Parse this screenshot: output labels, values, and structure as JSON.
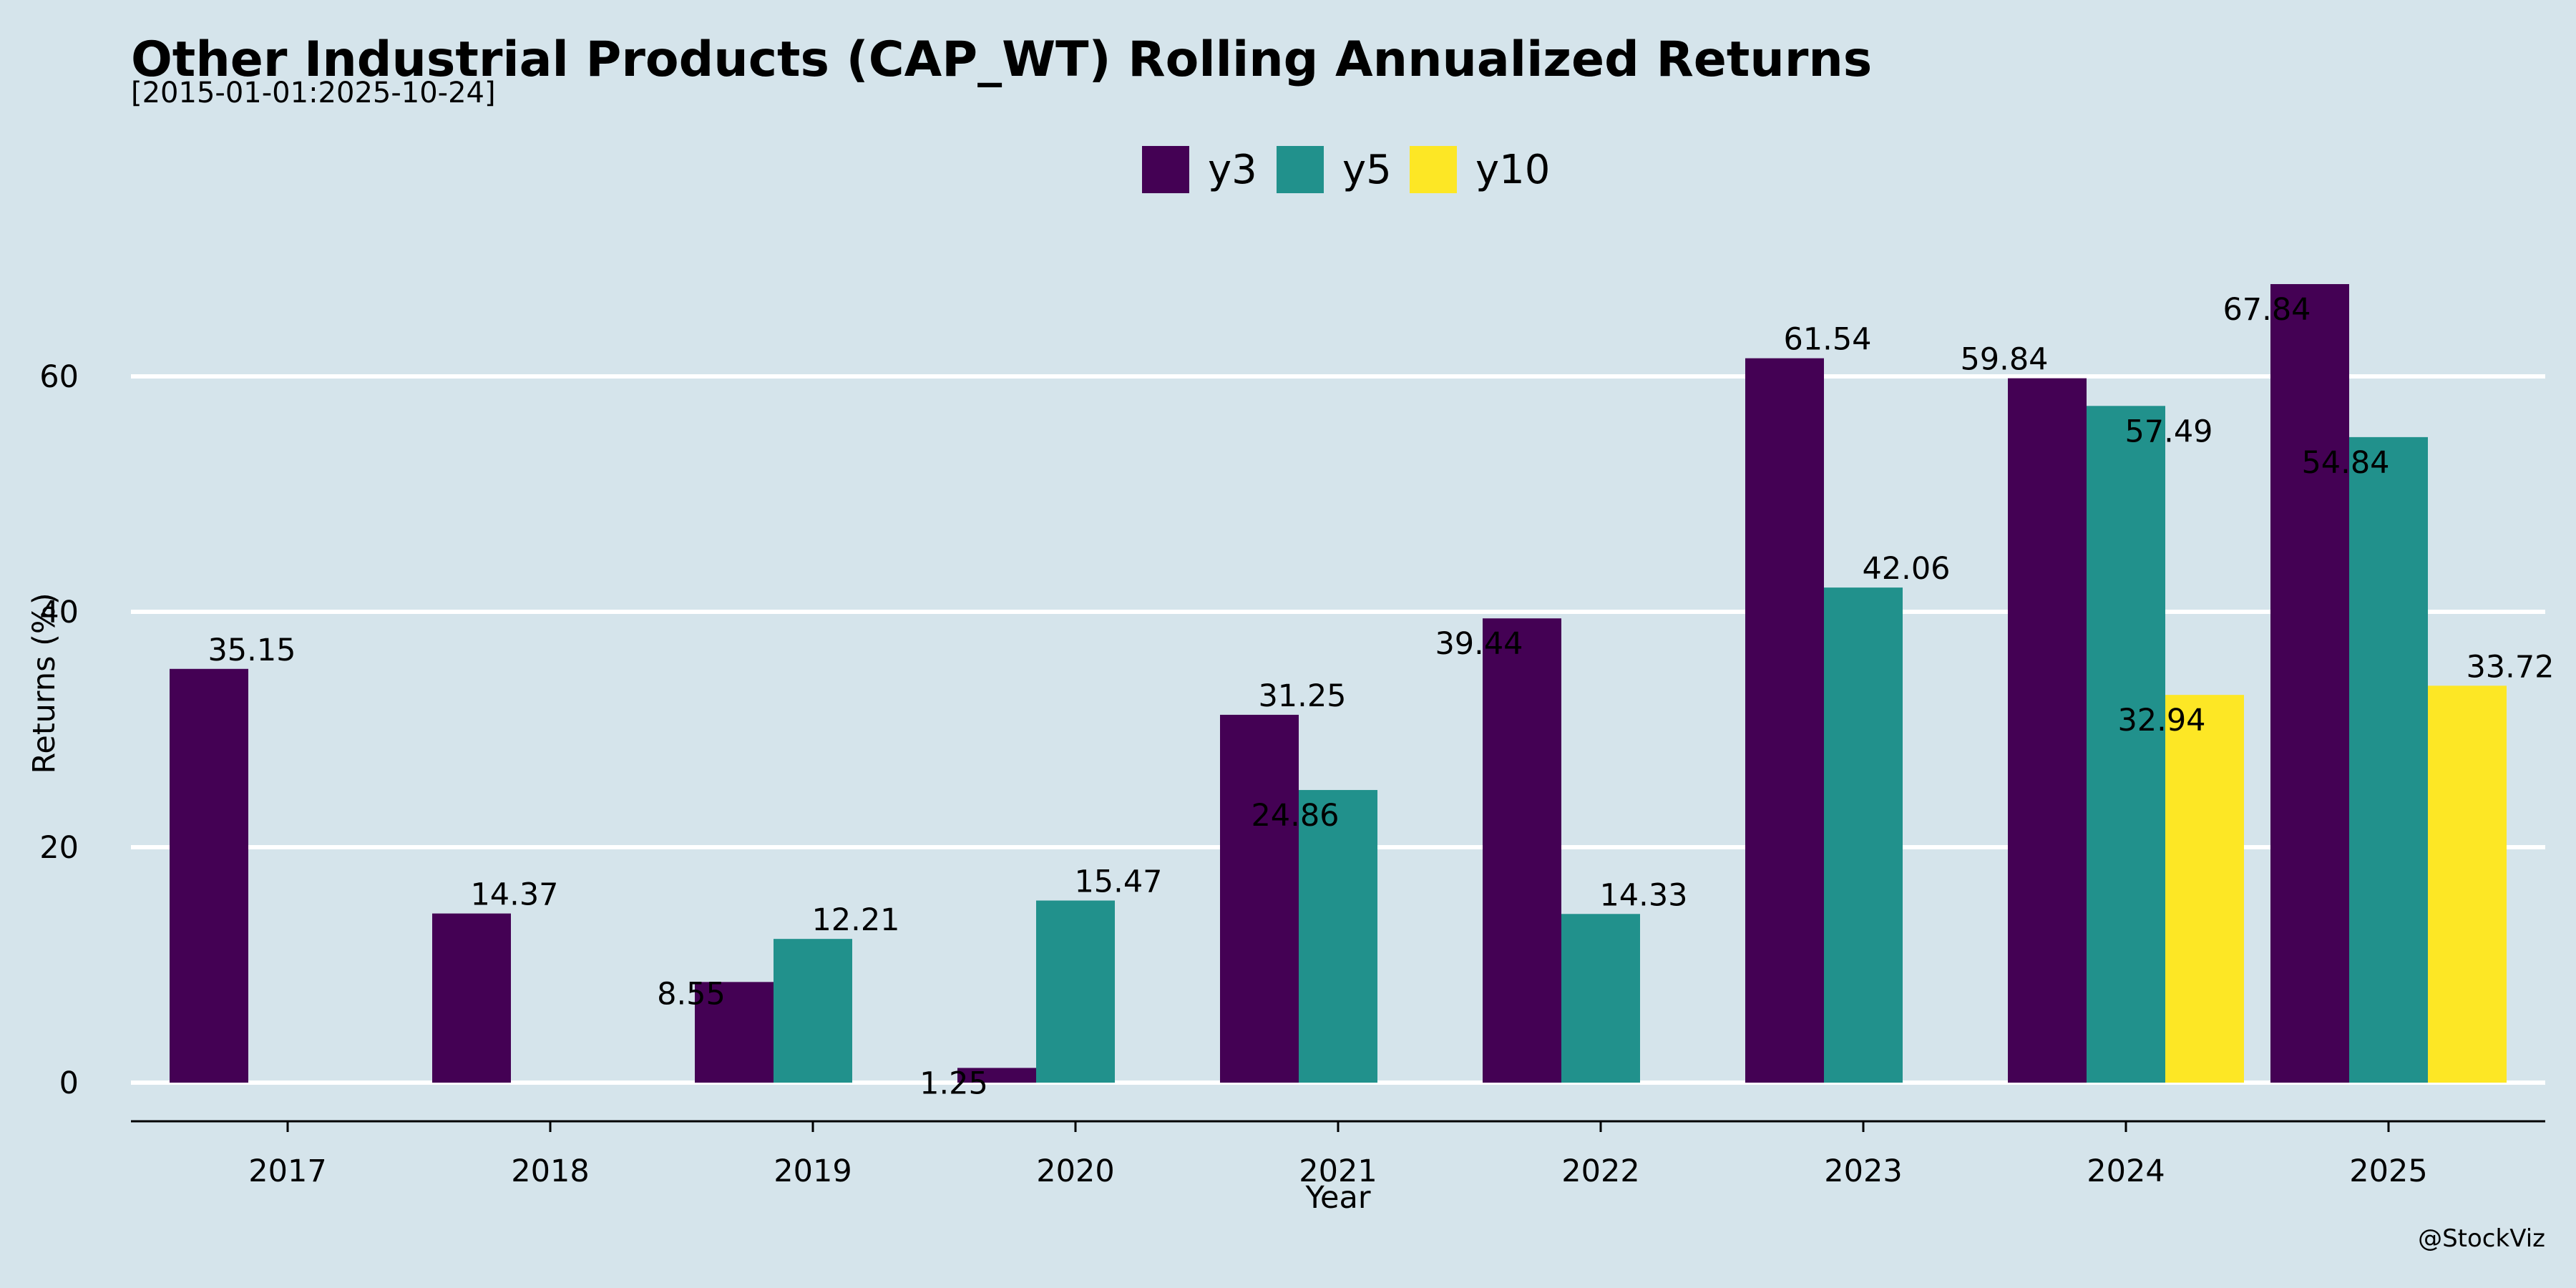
{
  "chart_data": {
    "type": "bar",
    "title": "Other Industrial Products (CAP_WT) Rolling Annualized Returns",
    "subtitle": "[2015-01-01:2025-10-24]",
    "xlabel": "Year",
    "ylabel": "Returns (%)",
    "credit": "@StockViz",
    "categories": [
      "2017",
      "2018",
      "2019",
      "2020",
      "2021",
      "2022",
      "2023",
      "2024",
      "2025"
    ],
    "series": [
      {
        "name": "y3",
        "color": "#440154",
        "values": [
          35.15,
          14.37,
          8.55,
          1.25,
          31.25,
          39.44,
          61.54,
          59.84,
          67.84
        ]
      },
      {
        "name": "y5",
        "color": "#21918c",
        "values": [
          null,
          null,
          12.21,
          15.47,
          24.86,
          14.33,
          42.06,
          57.49,
          54.84
        ]
      },
      {
        "name": "y10",
        "color": "#fde725",
        "values": [
          null,
          null,
          null,
          null,
          null,
          null,
          null,
          32.94,
          33.72
        ]
      }
    ],
    "labels": [
      {
        "text": "35.15",
        "series": 0,
        "category": 0
      },
      {
        "text": "14.37",
        "series": 0,
        "category": 1
      },
      {
        "text": "8.55",
        "series": 0,
        "category": 2
      },
      {
        "text": "1.25",
        "series": 0,
        "category": 3
      },
      {
        "text": "31.25",
        "series": 0,
        "category": 4
      },
      {
        "text": "39.44",
        "series": 0,
        "category": 5
      },
      {
        "text": "61.54",
        "series": 0,
        "category": 6
      },
      {
        "text": "59.84",
        "series": 0,
        "category": 7
      },
      {
        "text": "67.84",
        "series": 0,
        "category": 8
      },
      {
        "text": "12.21",
        "series": 1,
        "category": 2
      },
      {
        "text": "15.47",
        "series": 1,
        "category": 3
      },
      {
        "text": "24.86",
        "series": 1,
        "category": 4
      },
      {
        "text": "14.33",
        "series": 1,
        "category": 5
      },
      {
        "text": "42.06",
        "series": 1,
        "category": 6
      },
      {
        "text": "57.49",
        "series": 1,
        "category": 7
      },
      {
        "text": "54.84",
        "series": 1,
        "category": 8
      },
      {
        "text": "32.94",
        "series": 2,
        "category": 7
      },
      {
        "text": "33.72",
        "series": 2,
        "category": 8
      }
    ],
    "yticks": [
      0,
      20,
      40,
      60
    ],
    "ylim": [
      -3.5,
      70
    ],
    "grid": true,
    "legend": "top-center",
    "background": "#d5e4eb"
  }
}
